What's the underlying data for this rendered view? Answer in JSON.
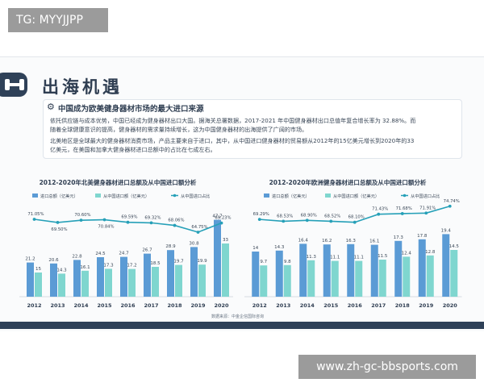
{
  "tag_label": "TG: MYYJJPP",
  "watermark_label": "www.zh-gc-bbsports.com",
  "heading": "出海机遇",
  "card": {
    "title": "中国成为欧美健身器材市场的最大进口来源",
    "p1_line1": "依托供应链与成本优势，中国已经成为健身器材出口大国。据海关总署数据，2017-2021 年中国健身器材出口总值年复合增长率为 32.88%。而",
    "p1_line2": "随着全球健康意识的提高，健身器材的需求量持续增长，这为中国健身器材的出海提供了广阔的市场。",
    "p2_line1": "北美地区是全球最大的健身器材消费市场，产品主要来自于进口，其中，从中国进口健身器材的贸易额从2012年的15亿美元增长到2020年的33",
    "p2_line2": "亿美元，在美国和加拿大健身器材进口总额中的占比在七成左右。"
  },
  "source_note": "数据来源：中金企信国际咨询",
  "colors": {
    "total_bar": "#5b9bd5",
    "china_bar": "#7fd6cf",
    "share_line": "#26a0b8",
    "dark": "#2f4158"
  },
  "chart_data": [
    {
      "type": "bar",
      "title": "2012-2020年北美健身器材进口总额及从中国进口额分析",
      "categories": [
        "2012",
        "2013",
        "2014",
        "2015",
        "2016",
        "2017",
        "2018",
        "2019",
        "2020"
      ],
      "series": [
        {
          "name": "进口总额（亿美元）",
          "kind": "bar",
          "values": [
            21.2,
            20.6,
            22.8,
            24.5,
            24.7,
            26.7,
            28.9,
            30.8,
            47.7
          ]
        },
        {
          "name": "从中国进口额（亿美元）",
          "kind": "bar",
          "values": [
            15,
            14.3,
            16.1,
            17.3,
            17.2,
            18.5,
            19.7,
            19.9,
            33
          ]
        },
        {
          "name": "从中国进口占比",
          "kind": "line",
          "values": [
            71.05,
            69.5,
            70.6,
            70.84,
            69.59,
            69.32,
            68.06,
            64.75,
            69.23
          ],
          "labels": [
            "71.05%",
            "69.50%",
            "70.60%",
            "70.84%",
            "69.59%",
            "69.32%",
            "68.06%",
            "64.75%",
            "69.23%"
          ]
        }
      ],
      "ylim": [
        0,
        50
      ],
      "line_ylim": [
        60,
        75
      ],
      "grid": false,
      "legend": "top"
    },
    {
      "type": "bar",
      "title": "2012-2020年欧洲健身器材进口总额及从中国进口额分析",
      "categories": [
        "2012",
        "2013",
        "2014",
        "2015",
        "2016",
        "2017",
        "2018",
        "2019",
        "2020"
      ],
      "series": [
        {
          "name": "进口总额（亿美元）",
          "kind": "bar",
          "values": [
            14,
            14.3,
            16.4,
            16.2,
            16.3,
            16.1,
            17.3,
            17.8,
            19.4
          ]
        },
        {
          "name": "从中国进口额（亿美元）",
          "kind": "bar",
          "values": [
            9.7,
            9.8,
            11.3,
            11.1,
            11.1,
            11.5,
            12.4,
            12.8,
            14.5
          ]
        },
        {
          "name": "从中国进口占比",
          "kind": "line",
          "values": [
            69.29,
            68.53,
            68.9,
            68.52,
            68.1,
            71.43,
            71.68,
            71.91,
            74.74
          ],
          "labels": [
            "69.29%",
            "68.53%",
            "68.90%",
            "68.52%",
            "68.10%",
            "71.43%",
            "71.68%",
            "71.91%",
            "74.74%"
          ]
        }
      ],
      "ylim": [
        0,
        25
      ],
      "line_ylim": [
        60,
        76
      ],
      "grid": false,
      "legend": "top"
    }
  ]
}
